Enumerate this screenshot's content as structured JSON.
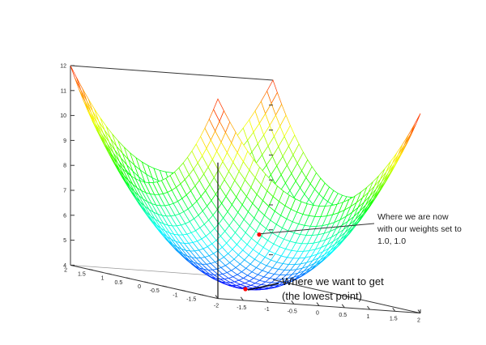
{
  "chart_data": {
    "type": "surface",
    "function": "z = x^2 + y^2 + 4",
    "x": {
      "min": -2,
      "max": 2,
      "tick_labels": [
        "-2",
        "-1.5",
        "-1",
        "-0.5",
        "0",
        "0.5",
        "1",
        "1.5",
        "2"
      ]
    },
    "y": {
      "min": -2,
      "max": 2,
      "tick_labels": [
        "-1.5",
        "-1",
        "-0.5",
        "0",
        "0.5",
        "1",
        "1.5",
        "2"
      ]
    },
    "z": {
      "min": 4,
      "max": 12,
      "tick_labels": [
        "4",
        "5",
        "6",
        "7",
        "8",
        "9",
        "10",
        "11",
        "12"
      ]
    },
    "grid": true,
    "colormap": [
      "#0000ff",
      "#00ffff",
      "#00ff00",
      "#ffff00",
      "#ff0000"
    ],
    "points": [
      {
        "name": "current",
        "x": 1.0,
        "y": 1.0,
        "z": 6,
        "color": "#ff0000"
      },
      {
        "name": "minimum",
        "x": 0,
        "y": 0,
        "z": 4,
        "color": "#ff0000"
      }
    ],
    "annotations": [
      {
        "id": "current",
        "lines": [
          "Where we are now",
          "with our weights set to",
          "1.0, 1.0"
        ]
      },
      {
        "id": "minimum",
        "lines": [
          "Where we want to get",
          "(the lowest point)"
        ]
      }
    ]
  }
}
